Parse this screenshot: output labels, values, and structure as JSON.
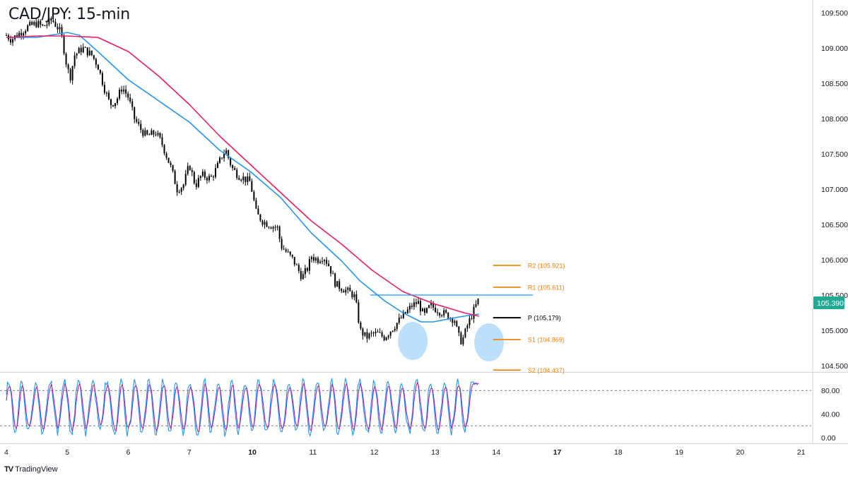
{
  "title": "CAD/JPY: 15-min",
  "branding": {
    "logo": "TV",
    "name": "TradingView"
  },
  "colors": {
    "candle": "#000000",
    "ma_fast": "#2196f3",
    "ma_slow": "#e91e63",
    "pivot_levels": "#f57c00",
    "pivot_line": "#000000",
    "resistance_line": "#2196f3",
    "highlight_circle": "#90caf9",
    "price_tag": "#22ab94",
    "stoch_k": "#2196f3",
    "stoch_d": "#9c27b0",
    "axis_text": "#131722",
    "grid": "#d1d4dc"
  },
  "chart_data": [
    {
      "type": "candlestick",
      "title": "CAD/JPY: 15-min",
      "x_ticks": [
        "4",
        "5",
        "6",
        "7",
        "10",
        "11",
        "12",
        "13",
        "14",
        "17",
        "18",
        "19",
        "20",
        "21"
      ],
      "y_ticks": [
        "109.500",
        "109.000",
        "108.500",
        "108.000",
        "107.500",
        "107.000",
        "106.500",
        "106.000",
        "105.500",
        "105.000",
        "104.500"
      ],
      "ylim": [
        104.2,
        109.65
      ],
      "last_price": "105.390",
      "price_path": [
        [
          0,
          109.18
        ],
        [
          0.08,
          109.12
        ],
        [
          0.2,
          109.2
        ],
        [
          0.35,
          109.3
        ],
        [
          0.5,
          109.35
        ],
        [
          0.6,
          109.3
        ],
        [
          0.75,
          109.4
        ],
        [
          0.85,
          109.28
        ],
        [
          0.9,
          109.2
        ],
        [
          0.95,
          108.95
        ],
        [
          1.0,
          108.7
        ],
        [
          1.05,
          108.6
        ],
        [
          1.12,
          108.9
        ],
        [
          1.25,
          109.0
        ],
        [
          1.4,
          108.9
        ],
        [
          1.5,
          108.75
        ],
        [
          1.6,
          108.45
        ],
        [
          1.7,
          108.2
        ],
        [
          1.8,
          108.25
        ],
        [
          1.9,
          108.45
        ],
        [
          2.0,
          108.3
        ],
        [
          2.1,
          108.0
        ],
        [
          2.2,
          107.85
        ],
        [
          2.3,
          107.75
        ],
        [
          2.45,
          107.8
        ],
        [
          2.55,
          107.65
        ],
        [
          2.7,
          107.3
        ],
        [
          2.8,
          107.0
        ],
        [
          2.9,
          107.05
        ],
        [
          3.0,
          107.35
        ],
        [
          3.1,
          107.05
        ],
        [
          3.2,
          107.2
        ],
        [
          3.35,
          107.15
        ],
        [
          3.45,
          107.3
        ],
        [
          3.55,
          107.5
        ],
        [
          3.6,
          107.55
        ],
        [
          3.7,
          107.3
        ],
        [
          3.8,
          107.2
        ],
        [
          3.9,
          107.15
        ],
        [
          4.0,
          107.1
        ],
        [
          4.1,
          106.65
        ],
        [
          4.2,
          106.55
        ],
        [
          4.3,
          106.5
        ],
        [
          4.45,
          106.45
        ],
        [
          4.5,
          106.2
        ],
        [
          4.6,
          106.1
        ],
        [
          4.7,
          106.0
        ],
        [
          4.85,
          105.75
        ],
        [
          4.95,
          105.9
        ],
        [
          5.0,
          106.05
        ],
        [
          5.1,
          106.0
        ],
        [
          5.2,
          106.05
        ],
        [
          5.3,
          105.9
        ],
        [
          5.4,
          105.65
        ],
        [
          5.5,
          105.6
        ],
        [
          5.6,
          105.55
        ],
        [
          5.7,
          105.5
        ],
        [
          5.75,
          105.3
        ],
        [
          5.8,
          105.0
        ],
        [
          5.9,
          104.9
        ],
        [
          6.0,
          104.95
        ],
        [
          6.1,
          104.95
        ],
        [
          6.2,
          104.9
        ],
        [
          6.35,
          105.05
        ],
        [
          6.45,
          105.15
        ],
        [
          6.55,
          105.25
        ],
        [
          6.65,
          105.35
        ],
        [
          6.75,
          105.4
        ],
        [
          6.85,
          105.2
        ],
        [
          6.95,
          105.35
        ],
        [
          7.05,
          105.3
        ],
        [
          7.15,
          105.25
        ],
        [
          7.25,
          105.2
        ],
        [
          7.35,
          105.15
        ],
        [
          7.4,
          104.95
        ],
        [
          7.45,
          104.85
        ],
        [
          7.5,
          104.9
        ],
        [
          7.55,
          105.05
        ],
        [
          7.6,
          105.15
        ],
        [
          7.65,
          105.25
        ],
        [
          7.7,
          105.35
        ],
        [
          7.75,
          105.45
        ]
      ],
      "series": [
        {
          "name": "",
          "role": "fast MA",
          "points": [
            [
              0,
              109.15
            ],
            [
              0.5,
              109.15
            ],
            [
              1.0,
              109.22
            ],
            [
              1.2,
              109.18
            ],
            [
              1.5,
              108.95
            ],
            [
              2.0,
              108.55
            ],
            [
              2.5,
              108.25
            ],
            [
              3.0,
              107.95
            ],
            [
              3.5,
              107.55
            ],
            [
              4.0,
              107.25
            ],
            [
              4.5,
              106.88
            ],
            [
              5.0,
              106.38
            ],
            [
              5.5,
              105.98
            ],
            [
              5.8,
              105.7
            ],
            [
              6.2,
              105.42
            ],
            [
              6.5,
              105.25
            ],
            [
              6.8,
              105.12
            ],
            [
              7.0,
              105.12
            ],
            [
              7.3,
              105.17
            ],
            [
              7.5,
              105.2
            ],
            [
              7.75,
              105.23
            ]
          ]
        },
        {
          "name": "",
          "role": "slow MA",
          "points": [
            [
              0,
              109.15
            ],
            [
              0.5,
              109.17
            ],
            [
              1.0,
              109.17
            ],
            [
              1.5,
              109.15
            ],
            [
              2.0,
              108.95
            ],
            [
              2.5,
              108.6
            ],
            [
              3.0,
              108.2
            ],
            [
              3.5,
              107.75
            ],
            [
              4.0,
              107.35
            ],
            [
              4.5,
              106.95
            ],
            [
              5.0,
              106.55
            ],
            [
              5.5,
              106.22
            ],
            [
              6.0,
              105.85
            ],
            [
              6.5,
              105.55
            ],
            [
              7.0,
              105.38
            ],
            [
              7.5,
              105.25
            ],
            [
              7.75,
              105.2
            ]
          ]
        }
      ],
      "levels": [
        {
          "label": "R2 (105.921)",
          "value": 105.921,
          "x_start": 7.75,
          "x_end": 8.55
        },
        {
          "label": "R1 (105.611)",
          "value": 105.611,
          "x_start": 7.75,
          "x_end": 8.55
        },
        {
          "label": "P (105.179)",
          "value": 105.179,
          "x_start": 7.75,
          "x_end": 8.55
        },
        {
          "label": "S1 (104.869)",
          "value": 104.869,
          "x_start": 7.75,
          "x_end": 8.55
        },
        {
          "label": "S2 (104.437)",
          "value": 104.437,
          "x_start": 7.75,
          "x_end": 8.55
        }
      ],
      "resistance": {
        "value": 105.5,
        "x_start": 5.85,
        "x_end": 8.75
      },
      "highlights": [
        {
          "x": 6.85,
          "y": 104.9
        },
        {
          "x": 8.1,
          "y": 104.88
        }
      ]
    },
    {
      "type": "line",
      "role": "stochastic oscillator",
      "y_ticks": [
        "80.00",
        "40.00",
        "0.00"
      ],
      "ylim": [
        -2,
        110
      ],
      "reference_lines": [
        80,
        20
      ],
      "series": [
        {
          "name": "",
          "role": "%K"
        },
        {
          "name": "",
          "role": "%D"
        }
      ],
      "last_value": 88
    }
  ]
}
